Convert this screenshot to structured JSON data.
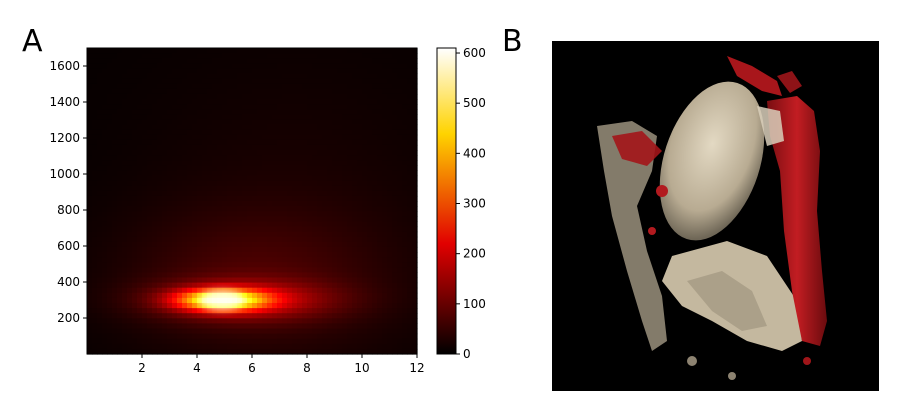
{
  "figure": {
    "panel_a_label": "A",
    "panel_b_label": "B"
  },
  "chart_data": {
    "type": "heatmap",
    "title": "",
    "xlabel": "",
    "ylabel": "",
    "xlim": [
      0,
      12
    ],
    "ylim": [
      0,
      1700
    ],
    "x_ticks": [
      2,
      4,
      6,
      8,
      10,
      12
    ],
    "y_ticks": [
      200,
      400,
      600,
      800,
      1000,
      1200,
      1400,
      1600
    ],
    "colorbar": {
      "colormap": "hot",
      "range": [
        0,
        610
      ],
      "ticks": [
        0,
        100,
        200,
        300,
        400,
        500,
        600
      ]
    },
    "density_peak": {
      "x": 4.9,
      "y": 300,
      "value": 600
    },
    "blobs": [
      {
        "x": 4.9,
        "y": 300,
        "sx": 1.1,
        "sy": 40,
        "amp": 420
      },
      {
        "x": 5.7,
        "y": 300,
        "sx": 2.2,
        "sy": 75,
        "amp": 140
      },
      {
        "x": 6.0,
        "y": 420,
        "sx": 3.2,
        "sy": 260,
        "amp": 45
      },
      {
        "x": 7.5,
        "y": 700,
        "sx": 4.5,
        "sy": 700,
        "amp": 18
      }
    ]
  },
  "render3d": {
    "description_colors": {
      "tissue": "#cfc3ab",
      "vessel": "#b0181e",
      "background": "#000000"
    }
  }
}
